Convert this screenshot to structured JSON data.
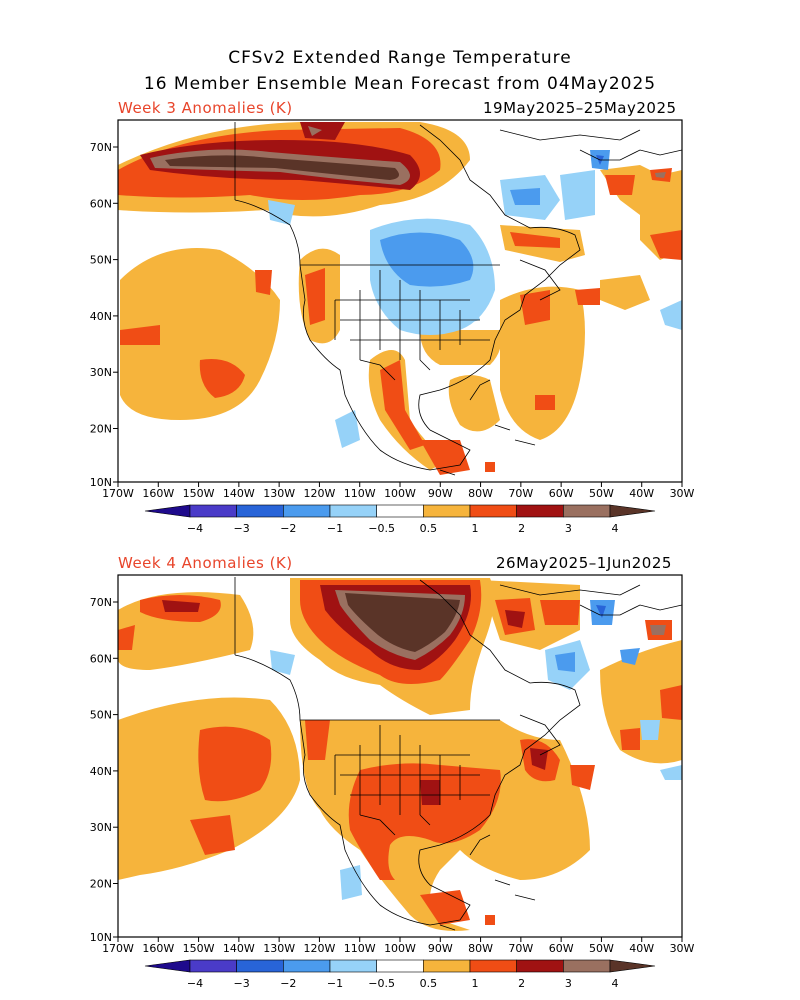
{
  "title_line1": "CFSv2 Extended Range Temperature",
  "title_line2": "16 Member Ensemble Mean Forecast from 04May2025",
  "panels": [
    {
      "label": "Week 3 Anomalies (K)",
      "dates": "19May2025–25May2025"
    },
    {
      "label": "Week 4 Anomalies (K)",
      "dates": "26May2025–1Jun2025"
    }
  ],
  "lat_labels": [
    "70N",
    "60N",
    "50N",
    "40N",
    "30N",
    "20N",
    "10N"
  ],
  "lon_labels": [
    "170W",
    "160W",
    "150W",
    "140W",
    "130W",
    "120W",
    "110W",
    "100W",
    "90W",
    "80W",
    "70W",
    "60W",
    "50W",
    "40W",
    "30W"
  ],
  "colorbar": {
    "labels": [
      "−4",
      "−3",
      "−2",
      "−1",
      "−0.5",
      "0.5",
      "1",
      "2",
      "3",
      "4"
    ],
    "colors": [
      "#1e0a8c",
      "#4a3bc8",
      "#2864d8",
      "#4b9bee",
      "#96d2f8",
      "#ffffff",
      "#f6b43c",
      "#f04d15",
      "#a01212",
      "#9a7060",
      "#5a3428"
    ]
  }
}
